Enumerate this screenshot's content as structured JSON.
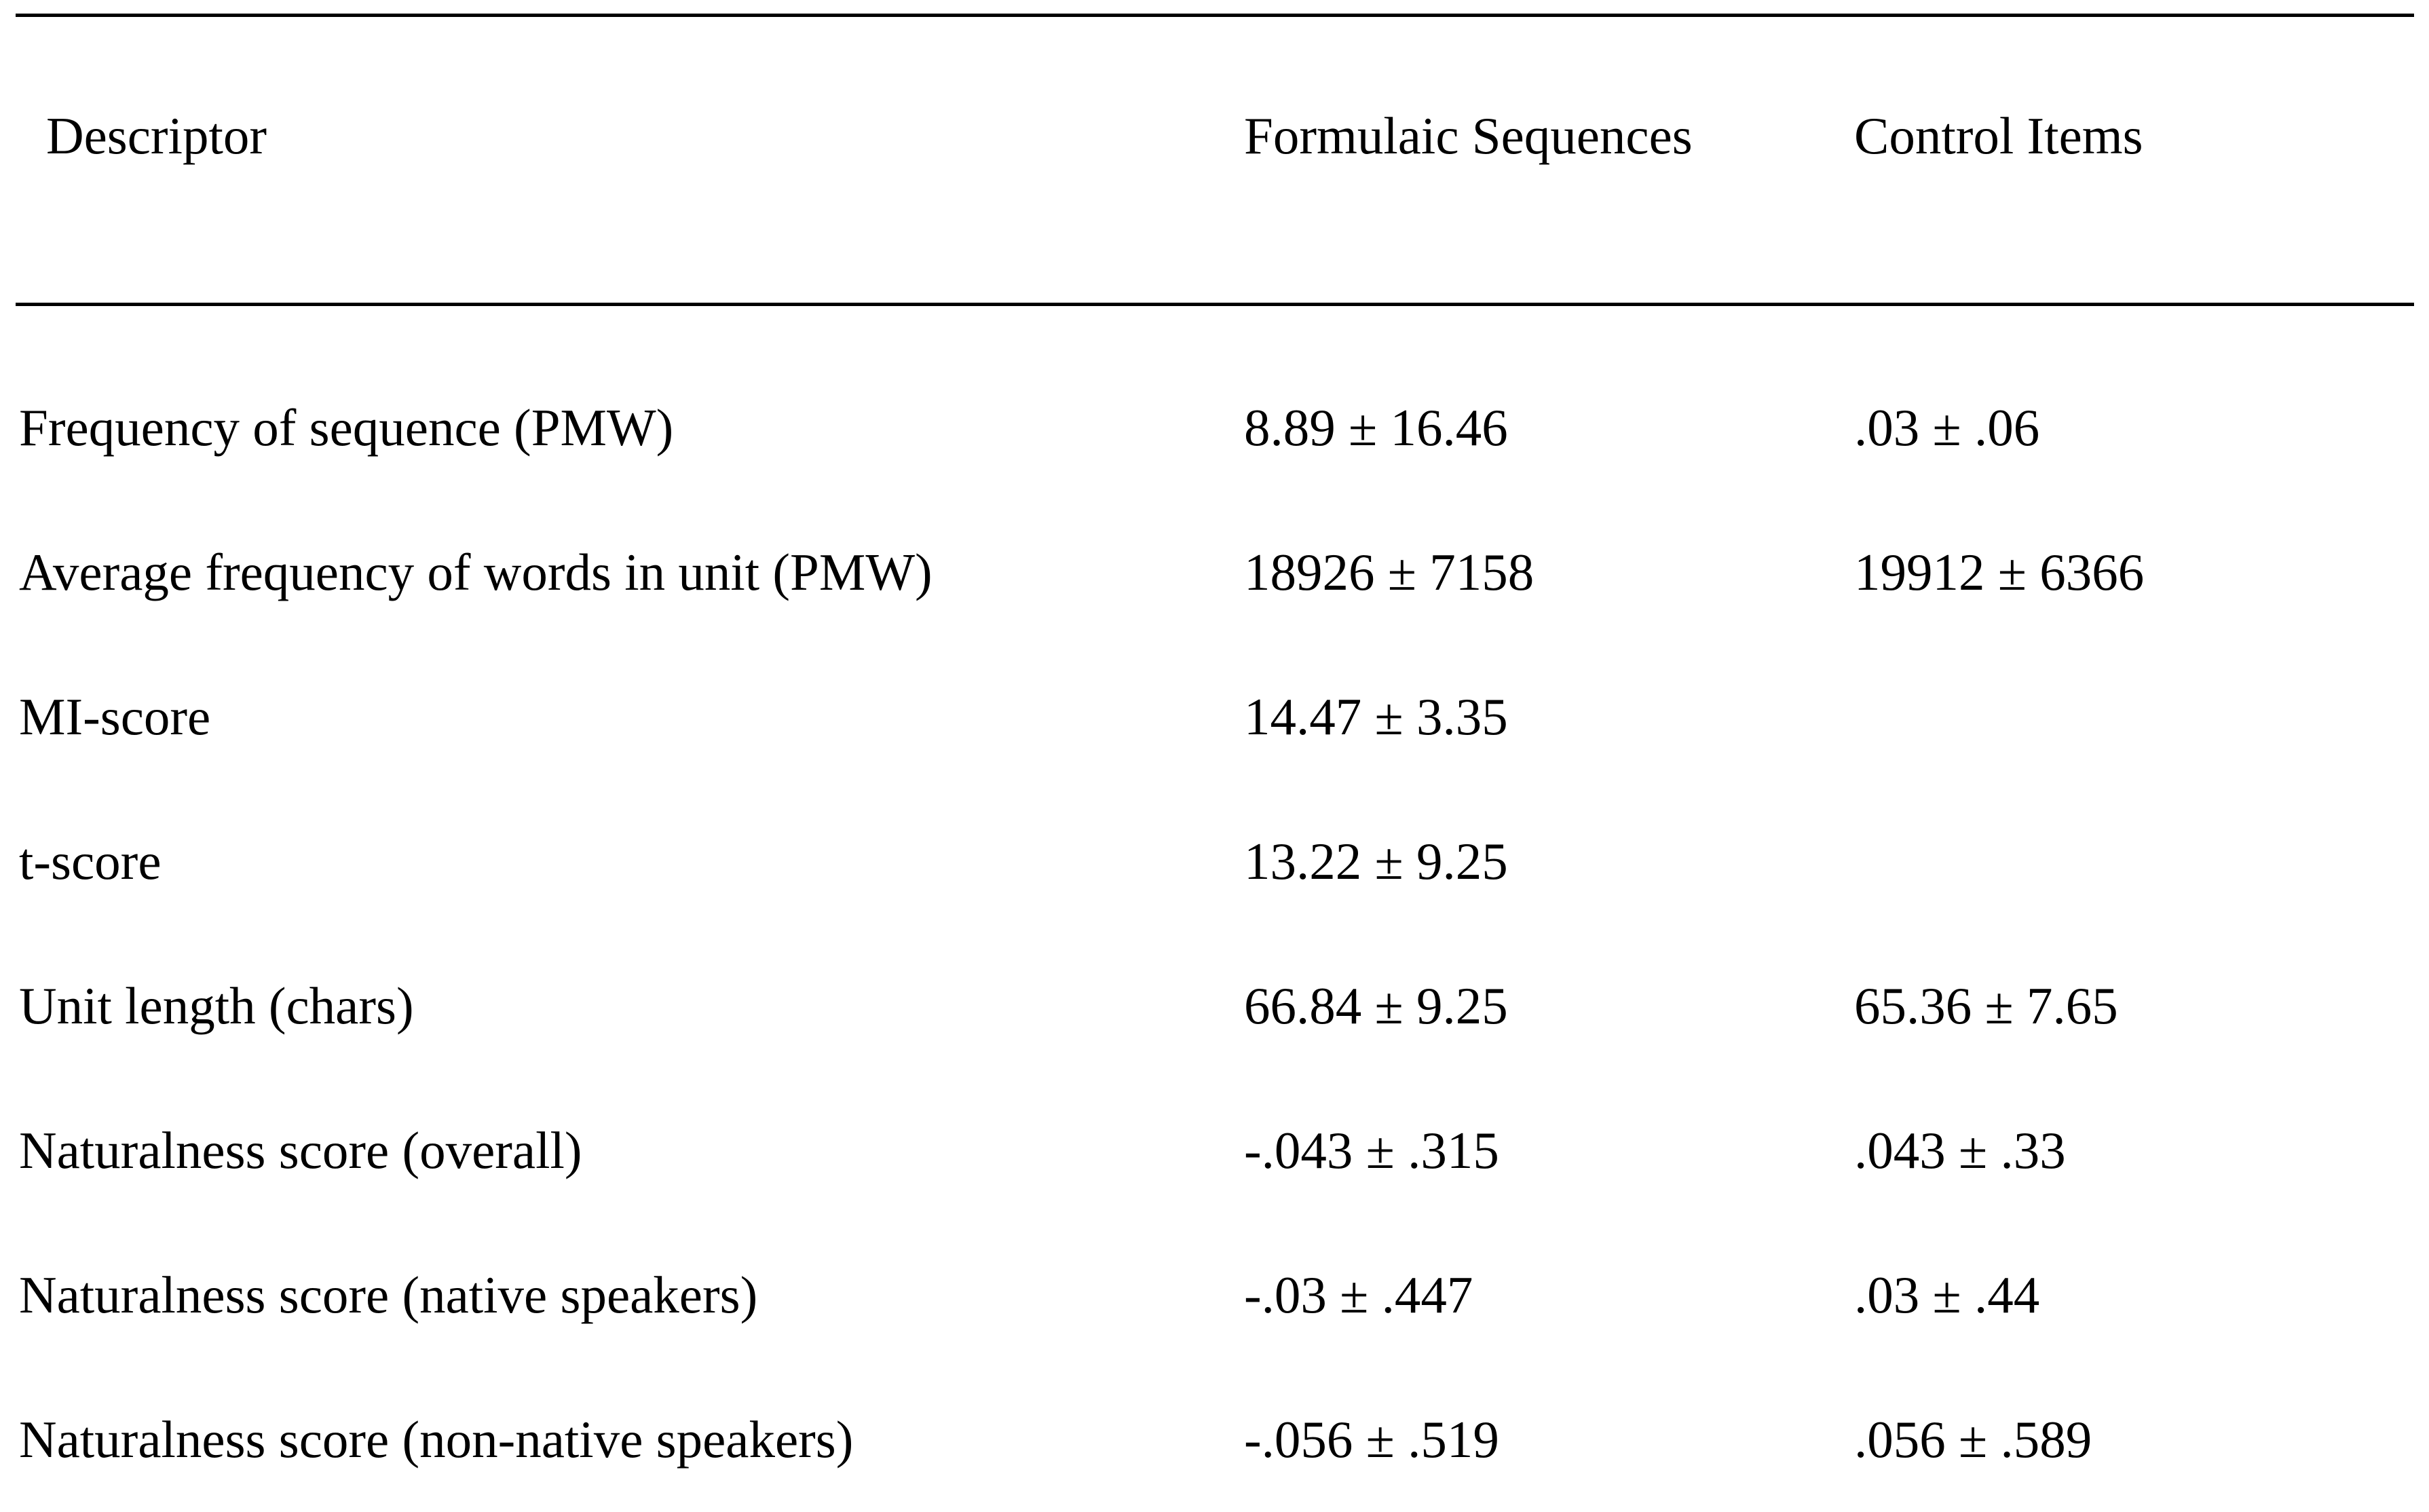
{
  "table": {
    "header": {
      "descriptor": "Descriptor",
      "formulaic": "Formulaic Sequences",
      "control": "Control Items"
    },
    "rows": [
      {
        "descriptor": "Frequency of sequence (PMW)",
        "formulaic": "8.89 ± 16.46",
        "control": ".03 ± .06"
      },
      {
        "descriptor": "Average frequency of words in unit (PMW)",
        "formulaic": "18926 ± 7158",
        "control": "19912 ± 6366"
      },
      {
        "descriptor": "MI-score",
        "formulaic": "14.47 ± 3.35",
        "control": ""
      },
      {
        "descriptor": "t-score",
        "formulaic": "13.22 ± 9.25",
        "control": ""
      },
      {
        "descriptor": "Unit length (chars)",
        "formulaic": "66.84 ± 9.25",
        "control": "65.36 ± 7.65"
      },
      {
        "descriptor": "Naturalness score (overall)",
        "formulaic": "-.043 ± .315",
        "control": ".043 ± .33"
      },
      {
        "descriptor": "Naturalness score (native speakers)",
        "formulaic": "-.03 ± .447",
        "control": ".03 ± .44"
      },
      {
        "descriptor": "Naturalness score (non-native speakers)",
        "formulaic": "-.056 ± .519",
        "control": ".056 ± .589"
      }
    ]
  },
  "colors": {
    "text": "#000000",
    "background": "#ffffff",
    "rule": "#000000"
  }
}
